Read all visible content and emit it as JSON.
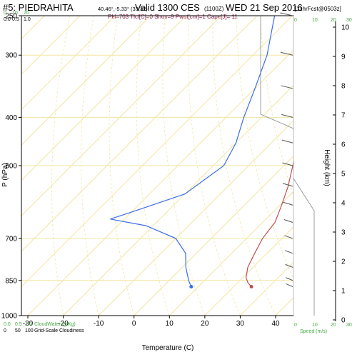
{
  "header": {
    "station": "#5: PIEDRAHITA",
    "coords": "40.46°,-5.33° (33,32)",
    "valid": "Valid 1300 CES",
    "utc": "(1100Z)",
    "date": "WED 21 Sep 2016",
    "forecast": "[11hrFcst@0503z]",
    "indices": "Pkl=703 Tlcl[C]=0 Shox=9 Pwat[cm]=1 Cape[J]= 11"
  },
  "colors": {
    "temperature": "#c0504d",
    "dewpoint": "#3a6ee8",
    "isotherm": "#f2e6a0",
    "cloudwater": "#44aa44",
    "barb": "#555555",
    "grid": "#cccccc"
  },
  "chart_data": {
    "type": "skew-t",
    "xlabel": "Temperature (C)",
    "ylabel": "P (hPa)",
    "right_ylabel": "Height (km)",
    "x_ticks": [
      "-30",
      "-20",
      "-10",
      "0",
      "10",
      "20",
      "30",
      "40"
    ],
    "x_tick_values": [
      -30,
      -20,
      -10,
      0,
      10,
      20,
      30,
      40
    ],
    "p_ticks": [
      "250",
      "300",
      "400",
      "500",
      "700",
      "850",
      "1000"
    ],
    "p_tick_values": [
      250,
      300,
      400,
      500,
      700,
      850,
      1000
    ],
    "height_ticks": [
      "0",
      "1",
      "2",
      "3",
      "4",
      "5",
      "6",
      "7",
      "8",
      "9",
      "10"
    ],
    "cloud_scale_top": {
      "water_ticks": [
        "0.0",
        "0.5",
        "1.0"
      ],
      "water_row": [
        "0",
        "10",
        "20"
      ]
    },
    "cloud_scale_bottom": {
      "water_label": "CloudWater (g/Kg)",
      "water_ticks": [
        "0.0",
        "0.5",
        "1.0"
      ],
      "cover_label": "Grid-Scale Cloudiness",
      "cover_ticks": [
        "0",
        "50",
        "100"
      ]
    },
    "speed_ticks": [
      "0",
      "10",
      "20",
      "30"
    ],
    "speed_label": "Speed (m/s)",
    "temperature_profile": [
      {
        "p": 875,
        "t": 25
      },
      {
        "p": 860,
        "t": 23
      },
      {
        "p": 840,
        "t": 21
      },
      {
        "p": 800,
        "t": 18.5
      },
      {
        "p": 750,
        "t": 16.5
      },
      {
        "p": 700,
        "t": 14.5
      },
      {
        "p": 650,
        "t": 13.5
      },
      {
        "p": 600,
        "t": 10.5
      },
      {
        "p": 550,
        "t": 7
      },
      {
        "p": 500,
        "t": 2.5
      },
      {
        "p": 450,
        "t": -3
      },
      {
        "p": 400,
        "t": -9
      },
      {
        "p": 350,
        "t": -16
      },
      {
        "p": 300,
        "t": -24
      },
      {
        "p": 275,
        "t": -28.5
      },
      {
        "p": 250,
        "t": -33.5
      }
    ],
    "dewpoint_profile": [
      {
        "p": 875,
        "t": 8
      },
      {
        "p": 870,
        "t": 7.5
      },
      {
        "p": 850,
        "t": 5.5
      },
      {
        "p": 800,
        "t": 1
      },
      {
        "p": 750,
        "t": -3
      },
      {
        "p": 700,
        "t": -10
      },
      {
        "p": 660,
        "t": -22
      },
      {
        "p": 640,
        "t": -34
      },
      {
        "p": 620,
        "t": -30
      },
      {
        "p": 570,
        "t": -20
      },
      {
        "p": 500,
        "t": -17
      },
      {
        "p": 450,
        "t": -20
      },
      {
        "p": 400,
        "t": -25
      },
      {
        "p": 350,
        "t": -30
      },
      {
        "p": 300,
        "t": -36
      },
      {
        "p": 250,
        "t": -45
      }
    ],
    "surface": {
      "p": 875,
      "t": 25,
      "td": 8
    },
    "wind_profile": [
      {
        "p": 875,
        "spd": 2
      },
      {
        "p": 850,
        "spd": 3
      },
      {
        "p": 800,
        "spd": 4
      },
      {
        "p": 750,
        "spd": 5
      },
      {
        "p": 700,
        "spd": 6
      },
      {
        "p": 650,
        "spd": 7
      },
      {
        "p": 600,
        "spd": 9
      },
      {
        "p": 550,
        "spd": 10
      },
      {
        "p": 500,
        "spd": 11
      },
      {
        "p": 450,
        "spd": 12
      },
      {
        "p": 400,
        "spd": 13
      },
      {
        "p": 350,
        "spd": 14
      },
      {
        "p": 300,
        "spd": 15
      },
      {
        "p": 250,
        "spd": 16
      }
    ]
  }
}
